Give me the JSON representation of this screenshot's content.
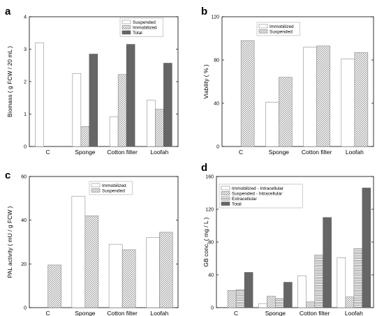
{
  "chart_data": [
    {
      "panel": "a",
      "type": "bar",
      "ylabel": "Biomass ( g FCW / 20 mL )",
      "ylim": [
        0,
        4
      ],
      "yticks": [
        0,
        1,
        2,
        3,
        4
      ],
      "categories": [
        "C",
        "Sponge",
        "Cotton filter",
        "Loofah"
      ],
      "series": [
        {
          "name": "Suspended",
          "pattern": "white",
          "values": [
            3.2,
            2.25,
            0.92,
            1.43
          ]
        },
        {
          "name": "Immobilized",
          "pattern": "hatch",
          "values": [
            null,
            0.62,
            2.22,
            1.15
          ]
        },
        {
          "name": "Total",
          "pattern": "gray",
          "values": [
            null,
            2.85,
            3.15,
            2.57
          ]
        }
      ],
      "legend": "top-right"
    },
    {
      "panel": "b",
      "type": "bar",
      "ylabel": "Viability ( % )",
      "ylim": [
        0,
        120
      ],
      "yticks": [
        0,
        40,
        80,
        120
      ],
      "categories": [
        "C",
        "Sponge",
        "Cotton filter",
        "Loofah"
      ],
      "series": [
        {
          "name": "Immobilized",
          "pattern": "white",
          "values": [
            null,
            41,
            92,
            81
          ]
        },
        {
          "name": "Suspended",
          "pattern": "hatch",
          "values": [
            98,
            64,
            93,
            87
          ]
        }
      ],
      "legend": "top-right"
    },
    {
      "panel": "c",
      "type": "bar",
      "ylabel": "PAL activity ( mU / g FCW )",
      "ylim": [
        0,
        60
      ],
      "yticks": [
        0,
        20,
        40,
        60
      ],
      "categories": [
        "C",
        "Sponge",
        "Cotton filter",
        "Loofah"
      ],
      "series": [
        {
          "name": "Immobilized",
          "pattern": "white",
          "values": [
            null,
            51,
            29,
            32
          ]
        },
        {
          "name": "Suspended",
          "pattern": "hatch",
          "values": [
            19.5,
            42,
            26.5,
            34.5
          ]
        }
      ],
      "legend": "top-right"
    },
    {
      "panel": "d",
      "type": "bar",
      "ylabel": "GB conc. ( mg / L )",
      "ylim": [
        0,
        160
      ],
      "yticks": [
        0,
        40,
        80,
        120,
        160
      ],
      "categories": [
        "C",
        "Sponge",
        "Cotton filter",
        "Loofah"
      ],
      "series": [
        {
          "name": "Immobilized - Intracellular",
          "pattern": "white",
          "values": [
            null,
            5,
            39,
            61
          ]
        },
        {
          "name": "Suspended - Intracellular",
          "pattern": "hatch",
          "values": [
            21,
            14,
            7,
            13
          ]
        },
        {
          "name": "Extracellular",
          "pattern": "hstripe",
          "values": [
            22,
            11,
            64,
            72
          ]
        },
        {
          "name": "Total",
          "pattern": "gray",
          "values": [
            43,
            31,
            110,
            146
          ]
        }
      ],
      "legend": "top-left"
    }
  ]
}
